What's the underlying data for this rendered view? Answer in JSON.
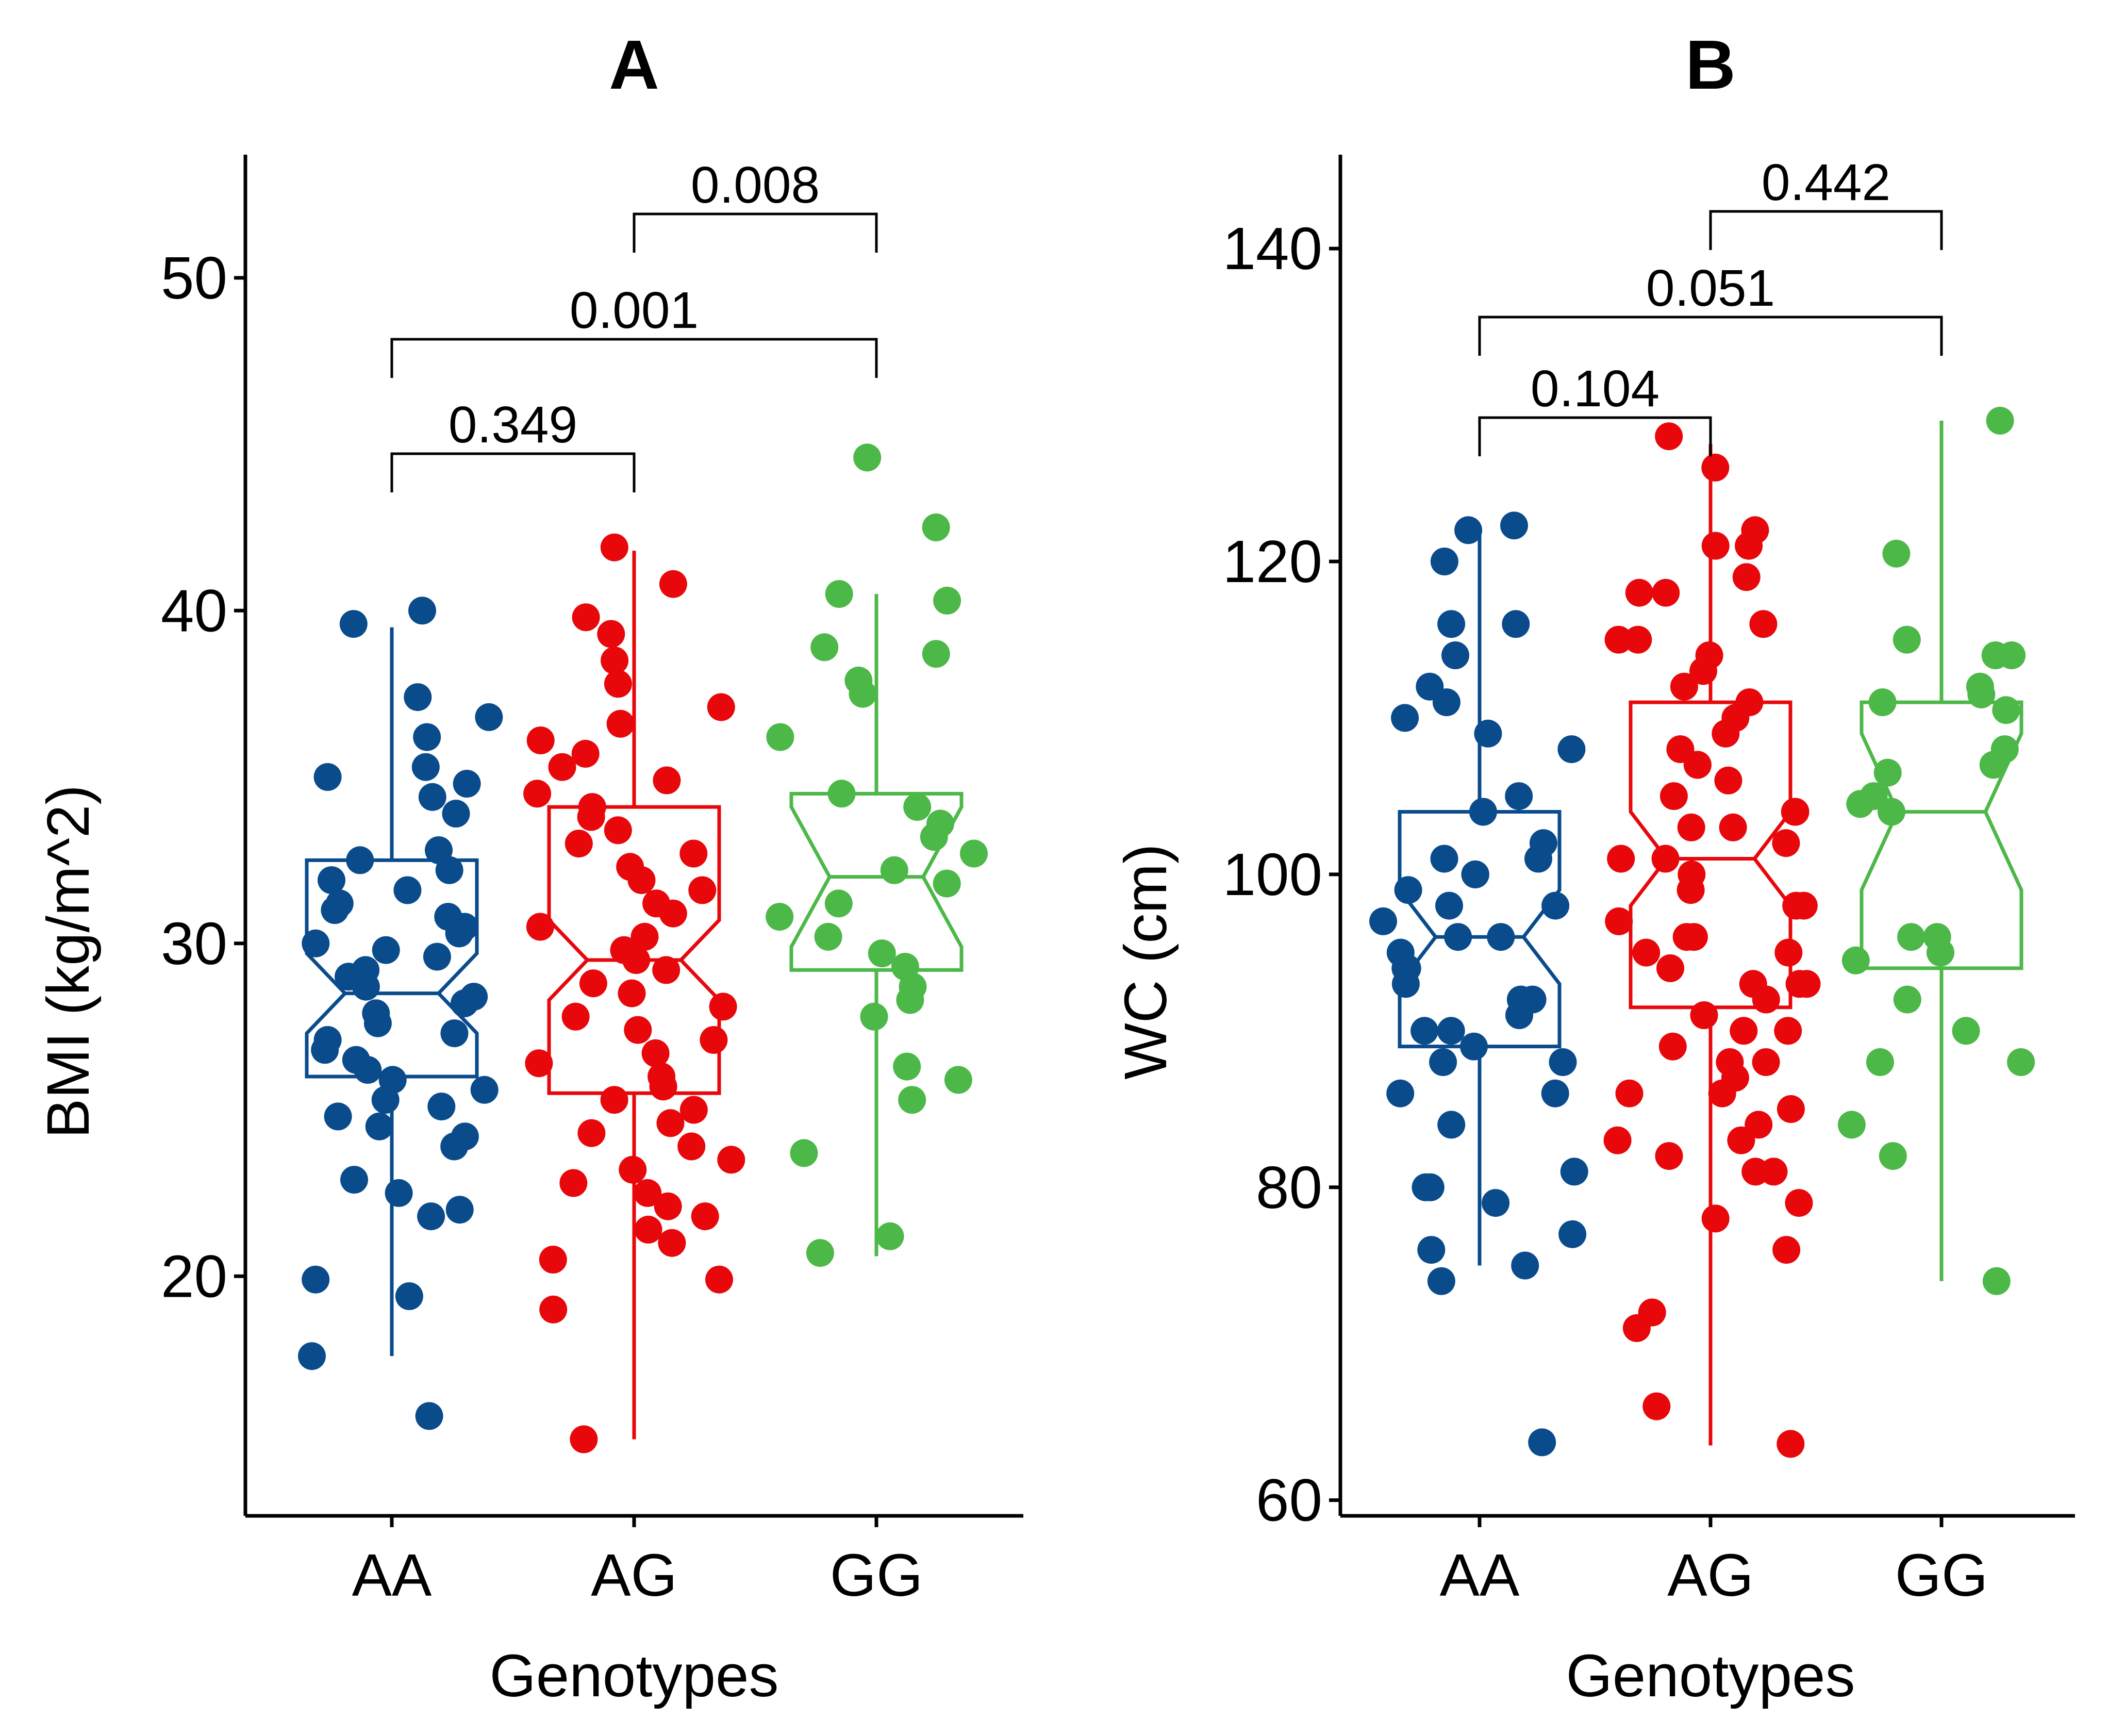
{
  "figure": {
    "layout": "two panels side by side"
  },
  "chart_data": [
    {
      "panel": "A",
      "type": "box",
      "title": "A",
      "xlabel": "Genotypes",
      "ylabel": "BMI (kg/m^2)",
      "ylim": [
        12.8,
        53.7
      ],
      "yticks": [
        20,
        30,
        40,
        50
      ],
      "categories": [
        "AA",
        "AG",
        "GG"
      ],
      "colors": {
        "AA": "#0A4B8C",
        "AG": "#E8070A",
        "GG": "#4CB848"
      },
      "boxes": [
        {
          "category": "AA",
          "whisker_low": 17.6,
          "q1": 26.0,
          "median": 28.5,
          "q3": 32.5,
          "whisker_high": 39.5,
          "notch_low": 27.3,
          "notch_high": 29.7
        },
        {
          "category": "AG",
          "whisker_low": 15.1,
          "q1": 25.5,
          "median": 29.5,
          "q3": 34.1,
          "whisker_high": 41.8,
          "notch_low": 28.3,
          "notch_high": 30.7
        },
        {
          "category": "GG",
          "whisker_low": 20.6,
          "q1": 29.2,
          "median": 32.0,
          "q3": 34.5,
          "whisker_high": 40.5,
          "notch_low": 29.9,
          "notch_high": 34.1
        }
      ],
      "points": {
        "AA": [
          40.0,
          39.6,
          37.4,
          36.8,
          36.2,
          35.3,
          35.0,
          34.8,
          34.4,
          33.9,
          32.8,
          32.5,
          32.2,
          31.9,
          31.6,
          31.2,
          31.0,
          30.8,
          30.5,
          30.3,
          30.0,
          29.8,
          29.6,
          29.2,
          29.0,
          28.7,
          28.4,
          28.2,
          27.9,
          27.6,
          27.3,
          27.1,
          26.8,
          26.5,
          26.2,
          25.9,
          25.6,
          25.3,
          25.1,
          24.8,
          24.5,
          24.2,
          23.9,
          22.9,
          22.5,
          22.0,
          21.8,
          19.9,
          19.4,
          17.6,
          15.8
        ],
        "AG": [
          41.9,
          40.8,
          39.8,
          39.3,
          38.5,
          37.8,
          37.1,
          36.6,
          36.1,
          35.7,
          35.3,
          34.9,
          34.5,
          34.1,
          33.8,
          33.4,
          33.0,
          32.7,
          32.3,
          31.9,
          31.6,
          31.2,
          30.9,
          30.5,
          30.2,
          29.8,
          29.5,
          29.2,
          28.8,
          28.5,
          28.1,
          27.8,
          27.4,
          27.1,
          26.7,
          26.4,
          26.0,
          25.7,
          25.3,
          25.0,
          24.6,
          24.3,
          23.9,
          23.5,
          23.2,
          22.8,
          22.5,
          22.1,
          21.8,
          21.4,
          21.0,
          20.5,
          19.9,
          19.0,
          15.1
        ],
        "GG": [
          44.6,
          42.5,
          40.5,
          40.3,
          38.9,
          38.7,
          37.9,
          37.5,
          36.2,
          34.5,
          34.1,
          33.6,
          33.2,
          32.7,
          32.2,
          31.8,
          31.2,
          30.8,
          30.2,
          29.7,
          29.3,
          28.7,
          28.3,
          27.8,
          26.3,
          25.9,
          25.3,
          23.7,
          21.2,
          20.7
        ]
      },
      "comparisons": [
        {
          "from": "AA",
          "to": "AG",
          "label": "0.349"
        },
        {
          "from": "AA",
          "to": "GG",
          "label": "0.001"
        },
        {
          "from": "AG",
          "to": "GG",
          "label": "0.008"
        }
      ]
    },
    {
      "panel": "B",
      "type": "box",
      "title": "B",
      "xlabel": "Genotypes",
      "ylabel": "WC (cm)",
      "ylim": [
        59.0,
        146.0
      ],
      "yticks": [
        60,
        80,
        100,
        120,
        140
      ],
      "categories": [
        "AA",
        "AG",
        "GG"
      ],
      "colors": {
        "AA": "#0A4B8C",
        "AG": "#E8070A",
        "GG": "#4CB848"
      },
      "boxes": [
        {
          "category": "AA",
          "whisker_low": 75.0,
          "q1": 89.0,
          "median": 96.0,
          "q3": 104.0,
          "whisker_high": 122.0,
          "notch_low": 93.0,
          "notch_high": 99.0
        },
        {
          "category": "AG",
          "whisker_low": 63.5,
          "q1": 91.5,
          "median": 101.0,
          "q3": 111.0,
          "whisker_high": 127.5,
          "notch_low": 98.0,
          "notch_high": 104.0
        },
        {
          "category": "GG",
          "whisker_low": 74.0,
          "q1": 94.0,
          "median": 104.0,
          "q3": 111.0,
          "whisker_high": 129.0,
          "notch_low": 99.0,
          "notch_high": 109.0
        }
      ],
      "points": {
        "AA": [
          122.3,
          122.0,
          120.0,
          116.0,
          116.0,
          114.0,
          112.0,
          111.0,
          110.0,
          109.0,
          108.0,
          105.0,
          104.0,
          102.0,
          101.0,
          101.0,
          100.0,
          100.0,
          99.0,
          98.0,
          98.0,
          97.0,
          96.0,
          96.0,
          95.0,
          94.0,
          94.0,
          93.0,
          92.0,
          92.0,
          91.0,
          90.0,
          90.0,
          89.0,
          88.0,
          88.0,
          86.0,
          86.0,
          84.0,
          81.0,
          80.0,
          80.0,
          79.0,
          77.0,
          76.0,
          75.0,
          74.0,
          63.7
        ],
        "AG": [
          128.0,
          126.0,
          122.0,
          121.0,
          121.0,
          119.0,
          118.0,
          118.0,
          116.0,
          115.0,
          115.0,
          114.0,
          113.0,
          112.0,
          111.0,
          110.0,
          109.0,
          108.0,
          107.0,
          107.0,
          106.0,
          105.0,
          104.0,
          104.0,
          103.0,
          103.0,
          102.0,
          101.0,
          101.0,
          100.0,
          99.0,
          98.0,
          98.0,
          97.0,
          96.0,
          96.0,
          95.0,
          95.0,
          94.0,
          93.0,
          93.0,
          93.0,
          92.0,
          91.0,
          90.0,
          90.0,
          89.0,
          88.0,
          88.0,
          87.0,
          86.0,
          86.0,
          85.0,
          84.0,
          83.0,
          83.0,
          82.0,
          81.0,
          81.0,
          79.0,
          78.0,
          76.0,
          72.0,
          71.0,
          66.0,
          63.6
        ],
        "GG": [
          129.0,
          120.5,
          115.0,
          114.0,
          114.0,
          112.0,
          111.5,
          111.0,
          110.5,
          108.0,
          107.0,
          106.5,
          105.0,
          104.5,
          104.0,
          96.0,
          96.0,
          95.0,
          94.5,
          92.0,
          90.0,
          88.0,
          88.0,
          84.0,
          82.0,
          74.0
        ]
      },
      "comparisons": [
        {
          "from": "AA",
          "to": "AG",
          "label": "0.104"
        },
        {
          "from": "AA",
          "to": "GG",
          "label": "0.051"
        },
        {
          "from": "AG",
          "to": "GG",
          "label": "0.442"
        }
      ]
    }
  ]
}
